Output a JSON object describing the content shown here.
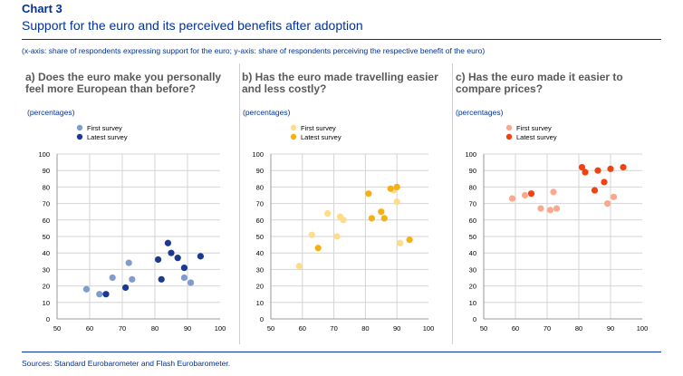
{
  "chart_label": "Chart 3",
  "title": "Support for the euro and its perceived benefits after adoption",
  "axis_note": "(x-axis: share of respondents expressing support for the euro; y-axis: share of respondents perceiving the respective benefit of the euro)",
  "sources": "Sources: Standard Eurobarometer and Flash Eurobarometer.",
  "chart_data": [
    {
      "type": "scatter",
      "title": "a) Does the euro make you personally feel more European than before?",
      "title_lines": [
        "a) Does the euro make you personally",
        "feel more European than before?"
      ],
      "ylabel": "(percentages)",
      "xlim": [
        50,
        100
      ],
      "ylim": [
        0,
        100
      ],
      "xticks": [
        50,
        60,
        70,
        80,
        90,
        100
      ],
      "yticks": [
        0,
        10,
        20,
        30,
        40,
        50,
        60,
        70,
        80,
        90,
        100
      ],
      "xtick_labels": [
        "50",
        "60",
        "70",
        "80",
        "90",
        "100"
      ],
      "ytick_labels": [
        "0",
        "10",
        "20",
        "30",
        "40",
        "50",
        "60",
        "70",
        "80",
        "90",
        "100"
      ],
      "series": [
        {
          "name": "First survey",
          "color": "#7f9ccf",
          "points": [
            [
              59,
              18
            ],
            [
              63,
              15
            ],
            [
              67,
              25
            ],
            [
              72,
              34
            ],
            [
              73,
              24
            ],
            [
              89,
              25
            ],
            [
              91,
              22
            ]
          ]
        },
        {
          "name": "Latest survey",
          "color": "#1a3a8f",
          "points": [
            [
              65,
              15
            ],
            [
              71,
              19
            ],
            [
              81,
              36
            ],
            [
              82,
              24
            ],
            [
              84,
              46
            ],
            [
              85,
              40
            ],
            [
              87,
              37
            ],
            [
              89,
              31
            ],
            [
              94,
              38
            ]
          ]
        }
      ]
    },
    {
      "type": "scatter",
      "title": "b) Has the euro made travelling easier and less costly?",
      "title_lines": [
        "b) Has the euro made travelling easier",
        "and less costly?"
      ],
      "ylabel": "(percentages)",
      "xlim": [
        50,
        100
      ],
      "ylim": [
        0,
        100
      ],
      "xticks": [
        50,
        60,
        70,
        80,
        90,
        100
      ],
      "yticks": [
        0,
        10,
        20,
        30,
        40,
        50,
        60,
        70,
        80,
        90,
        100
      ],
      "xtick_labels": [
        "50",
        "60",
        "70",
        "80",
        "90",
        "100"
      ],
      "ytick_labels": [
        "0",
        "10",
        "20",
        "30",
        "40",
        "50",
        "60",
        "70",
        "80",
        "90",
        "100"
      ],
      "series": [
        {
          "name": "First survey",
          "color": "#fddc8a",
          "points": [
            [
              59,
              32
            ],
            [
              63,
              51
            ],
            [
              68,
              64
            ],
            [
              71,
              50
            ],
            [
              72,
              62
            ],
            [
              73,
              60
            ],
            [
              89,
              78
            ],
            [
              90,
              71
            ],
            [
              91,
              46
            ]
          ]
        },
        {
          "name": "Latest survey",
          "color": "#f5b014",
          "points": [
            [
              65,
              43
            ],
            [
              81,
              76
            ],
            [
              82,
              61
            ],
            [
              85,
              65
            ],
            [
              86,
              61
            ],
            [
              88,
              79
            ],
            [
              90,
              80
            ],
            [
              94,
              48
            ]
          ]
        }
      ]
    },
    {
      "type": "scatter",
      "title": "c) Has the euro made it easier to compare prices?",
      "title_lines": [
        "c) Has the euro made it easier to",
        "compare prices?"
      ],
      "ylabel": "(percentages)",
      "xlim": [
        50,
        100
      ],
      "ylim": [
        0,
        100
      ],
      "xticks": [
        50,
        60,
        70,
        80,
        90,
        100
      ],
      "yticks": [
        0,
        10,
        20,
        30,
        40,
        50,
        60,
        70,
        80,
        90,
        100
      ],
      "xtick_labels": [
        "50",
        "60",
        "70",
        "80",
        "90",
        "100"
      ],
      "ytick_labels": [
        "0",
        "10",
        "20",
        "30",
        "40",
        "50",
        "60",
        "70",
        "80",
        "90",
        "100"
      ],
      "series": [
        {
          "name": "First survey",
          "color": "#f9a98f",
          "points": [
            [
              59,
              73
            ],
            [
              63,
              75
            ],
            [
              68,
              67
            ],
            [
              71,
              66
            ],
            [
              72,
              77
            ],
            [
              73,
              67
            ],
            [
              89,
              70
            ],
            [
              91,
              74
            ]
          ]
        },
        {
          "name": "Latest survey",
          "color": "#f0420f",
          "points": [
            [
              65,
              76
            ],
            [
              81,
              92
            ],
            [
              82,
              89
            ],
            [
              85,
              78
            ],
            [
              86,
              90
            ],
            [
              88,
              83
            ],
            [
              90,
              91
            ],
            [
              94,
              92
            ]
          ]
        }
      ]
    }
  ]
}
